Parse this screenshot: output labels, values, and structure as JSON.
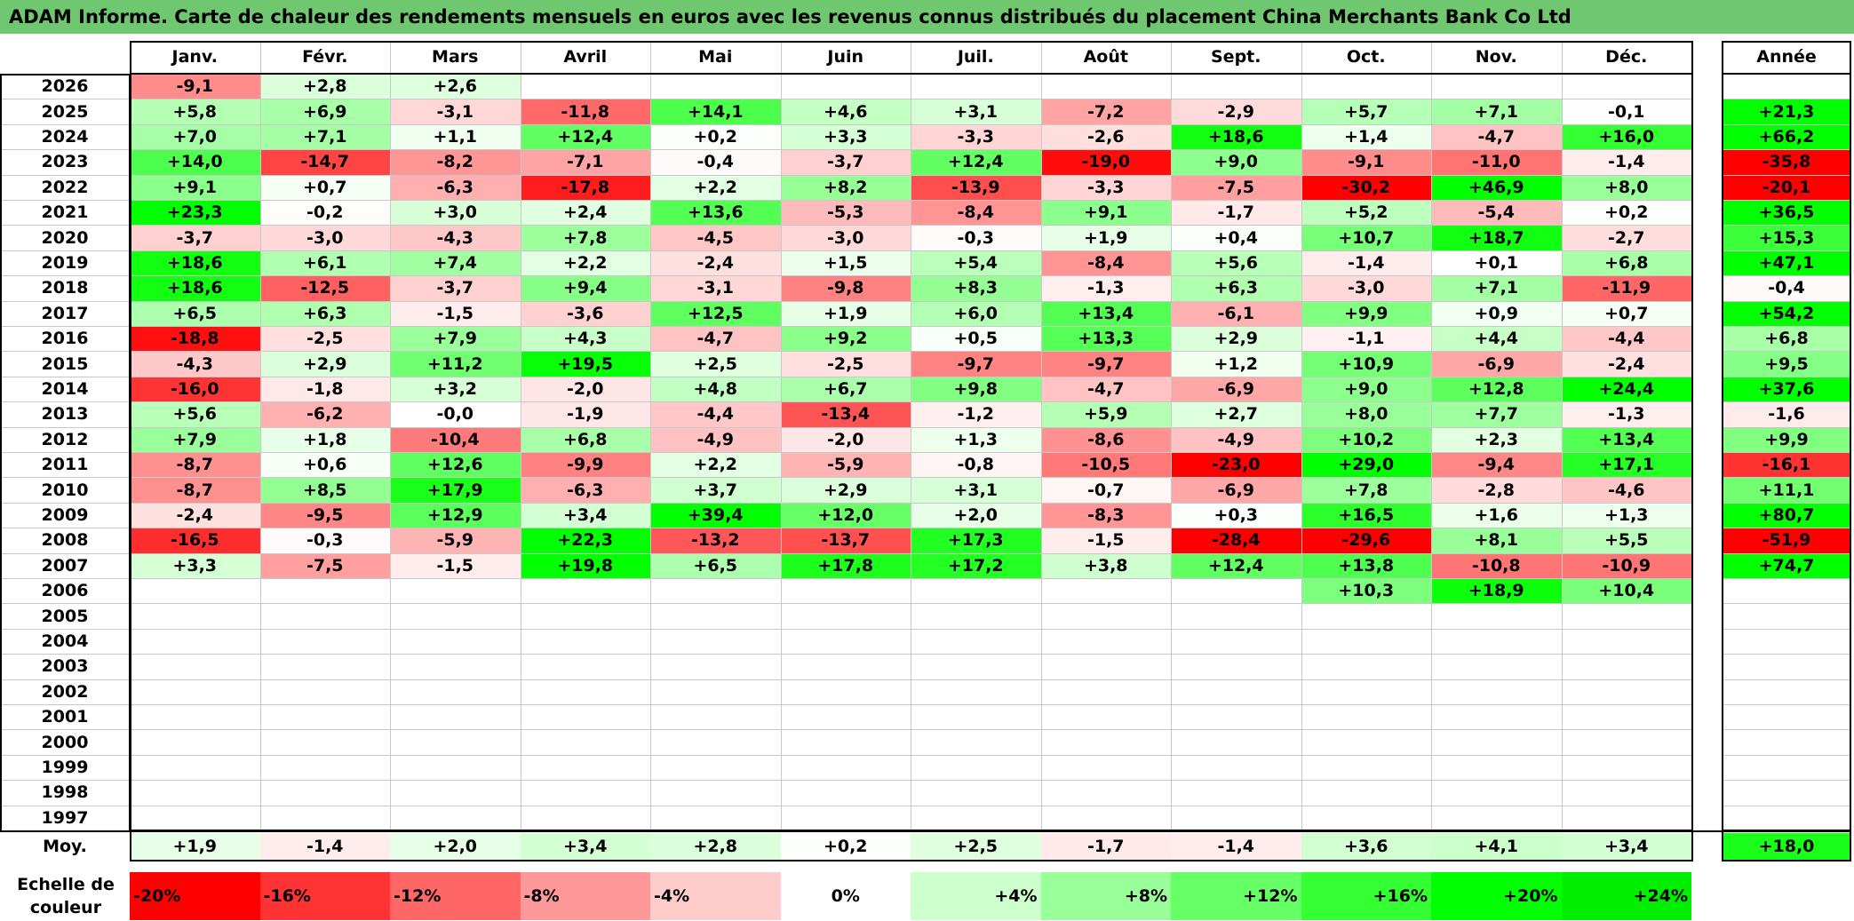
{
  "title": "ADAM Informe. Carte de chaleur des rendements mensuels en euros avec les revenus connus distribués du placement China Merchants Bank Co Ltd",
  "chart_data": {
    "type": "heatmap",
    "title": "ADAM Informe. Carte de chaleur des rendements mensuels en euros avec les revenus connus distribués du placement China Merchants Bank Co Ltd",
    "columns": [
      "Janv.",
      "Févr.",
      "Mars",
      "Avril",
      "Mai",
      "Juin",
      "Juil.",
      "Août",
      "Sept.",
      "Oct.",
      "Nov.",
      "Déc."
    ],
    "year_header": "Année",
    "rows": [
      {
        "year": "2026",
        "months": [
          "-9,1",
          "+2,8",
          "+2,6",
          "",
          "",
          "",
          "",
          "",
          "",
          "",
          "",
          ""
        ],
        "annual": ""
      },
      {
        "year": "2025",
        "months": [
          "+5,8",
          "+6,9",
          "-3,1",
          "-11,8",
          "+14,1",
          "+4,6",
          "+3,1",
          "-7,2",
          "-2,9",
          "+5,7",
          "+7,1",
          "-0,1"
        ],
        "annual": "+21,3"
      },
      {
        "year": "2024",
        "months": [
          "+7,0",
          "+7,1",
          "+1,1",
          "+12,4",
          "+0,2",
          "+3,3",
          "-3,3",
          "-2,6",
          "+18,6",
          "+1,4",
          "-4,7",
          "+16,0"
        ],
        "annual": "+66,2"
      },
      {
        "year": "2023",
        "months": [
          "+14,0",
          "-14,7",
          "-8,2",
          "-7,1",
          "-0,4",
          "-3,7",
          "+12,4",
          "-19,0",
          "+9,0",
          "-9,1",
          "-11,0",
          "-1,4"
        ],
        "annual": "-35,8"
      },
      {
        "year": "2022",
        "months": [
          "+9,1",
          "+0,7",
          "-6,3",
          "-17,8",
          "+2,2",
          "+8,2",
          "-13,9",
          "-3,3",
          "-7,5",
          "-30,2",
          "+46,9",
          "+8,0"
        ],
        "annual": "-20,1"
      },
      {
        "year": "2021",
        "months": [
          "+23,3",
          "-0,2",
          "+3,0",
          "+2,4",
          "+13,6",
          "-5,3",
          "-8,4",
          "+9,1",
          "-1,7",
          "+5,2",
          "-5,4",
          "+0,2"
        ],
        "annual": "+36,5"
      },
      {
        "year": "2020",
        "months": [
          "-3,7",
          "-3,0",
          "-4,3",
          "+7,8",
          "-4,5",
          "-3,0",
          "-0,3",
          "+1,9",
          "+0,4",
          "+10,7",
          "+18,7",
          "-2,7"
        ],
        "annual": "+15,3"
      },
      {
        "year": "2019",
        "months": [
          "+18,6",
          "+6,1",
          "+7,4",
          "+2,2",
          "-2,4",
          "+1,5",
          "+5,4",
          "-8,4",
          "+5,6",
          "-1,4",
          "+0,1",
          "+6,8"
        ],
        "annual": "+47,1"
      },
      {
        "year": "2018",
        "months": [
          "+18,6",
          "-12,5",
          "-3,7",
          "+9,4",
          "-3,1",
          "-9,8",
          "+8,3",
          "-1,3",
          "+6,3",
          "-3,0",
          "+7,1",
          "-11,9"
        ],
        "annual": "-0,4"
      },
      {
        "year": "2017",
        "months": [
          "+6,5",
          "+6,3",
          "-1,5",
          "-3,6",
          "+12,5",
          "+1,9",
          "+6,0",
          "+13,4",
          "-6,1",
          "+9,9",
          "+0,9",
          "+0,7"
        ],
        "annual": "+54,2"
      },
      {
        "year": "2016",
        "months": [
          "-18,8",
          "-2,5",
          "+7,9",
          "+4,3",
          "-4,7",
          "+9,2",
          "+0,5",
          "+13,3",
          "+2,9",
          "-1,1",
          "+4,4",
          "-4,4"
        ],
        "annual": "+6,8"
      },
      {
        "year": "2015",
        "months": [
          "-4,3",
          "+2,9",
          "+11,2",
          "+19,5",
          "+2,5",
          "-2,5",
          "-9,7",
          "-9,7",
          "+1,2",
          "+10,9",
          "-6,9",
          "-2,4"
        ],
        "annual": "+9,5"
      },
      {
        "year": "2014",
        "months": [
          "-16,0",
          "-1,8",
          "+3,2",
          "-2,0",
          "+4,8",
          "+6,7",
          "+9,8",
          "-4,7",
          "-6,9",
          "+9,0",
          "+12,8",
          "+24,4"
        ],
        "annual": "+37,6"
      },
      {
        "year": "2013",
        "months": [
          "+5,6",
          "-6,2",
          "-0,0",
          "-1,9",
          "-4,4",
          "-13,4",
          "-1,2",
          "+5,9",
          "+2,7",
          "+8,0",
          "+7,7",
          "-1,3"
        ],
        "annual": "-1,6"
      },
      {
        "year": "2012",
        "months": [
          "+7,9",
          "+1,8",
          "-10,4",
          "+6,8",
          "-4,9",
          "-2,0",
          "+1,3",
          "-8,6",
          "-4,9",
          "+10,2",
          "+2,3",
          "+13,4"
        ],
        "annual": "+9,9"
      },
      {
        "year": "2011",
        "months": [
          "-8,7",
          "+0,6",
          "+12,6",
          "-9,9",
          "+2,2",
          "-5,9",
          "-0,8",
          "-10,5",
          "-23,0",
          "+29,0",
          "-9,4",
          "+17,1"
        ],
        "annual": "-16,1"
      },
      {
        "year": "2010",
        "months": [
          "-8,7",
          "+8,5",
          "+17,9",
          "-6,3",
          "+3,7",
          "+2,9",
          "+3,1",
          "-0,7",
          "-6,9",
          "+7,8",
          "-2,8",
          "-4,6"
        ],
        "annual": "+11,1"
      },
      {
        "year": "2009",
        "months": [
          "-2,4",
          "-9,5",
          "+12,9",
          "+3,4",
          "+39,4",
          "+12,0",
          "+2,0",
          "-8,3",
          "+0,3",
          "+16,5",
          "+1,6",
          "+1,3"
        ],
        "annual": "+80,7"
      },
      {
        "year": "2008",
        "months": [
          "-16,5",
          "-0,3",
          "-5,9",
          "+22,3",
          "-13,2",
          "-13,7",
          "+17,3",
          "-1,5",
          "-28,4",
          "-29,6",
          "+8,1",
          "+5,5"
        ],
        "annual": "-51,9"
      },
      {
        "year": "2007",
        "months": [
          "+3,3",
          "-7,5",
          "-1,5",
          "+19,8",
          "+6,5",
          "+17,8",
          "+17,2",
          "+3,8",
          "+12,4",
          "+13,8",
          "-10,8",
          "-10,9"
        ],
        "annual": "+74,7"
      },
      {
        "year": "2006",
        "months": [
          "",
          "",
          "",
          "",
          "",
          "",
          "",
          "",
          "",
          "+10,3",
          "+18,9",
          "+10,4"
        ],
        "annual": ""
      },
      {
        "year": "2005",
        "months": [
          "",
          "",
          "",
          "",
          "",
          "",
          "",
          "",
          "",
          "",
          "",
          ""
        ],
        "annual": ""
      },
      {
        "year": "2004",
        "months": [
          "",
          "",
          "",
          "",
          "",
          "",
          "",
          "",
          "",
          "",
          "",
          ""
        ],
        "annual": ""
      },
      {
        "year": "2003",
        "months": [
          "",
          "",
          "",
          "",
          "",
          "",
          "",
          "",
          "",
          "",
          "",
          ""
        ],
        "annual": ""
      },
      {
        "year": "2002",
        "months": [
          "",
          "",
          "",
          "",
          "",
          "",
          "",
          "",
          "",
          "",
          "",
          ""
        ],
        "annual": ""
      },
      {
        "year": "2001",
        "months": [
          "",
          "",
          "",
          "",
          "",
          "",
          "",
          "",
          "",
          "",
          "",
          ""
        ],
        "annual": ""
      },
      {
        "year": "2000",
        "months": [
          "",
          "",
          "",
          "",
          "",
          "",
          "",
          "",
          "",
          "",
          "",
          ""
        ],
        "annual": ""
      },
      {
        "year": "1999",
        "months": [
          "",
          "",
          "",
          "",
          "",
          "",
          "",
          "",
          "",
          "",
          "",
          ""
        ],
        "annual": ""
      },
      {
        "year": "1998",
        "months": [
          "",
          "",
          "",
          "",
          "",
          "",
          "",
          "",
          "",
          "",
          "",
          ""
        ],
        "annual": ""
      },
      {
        "year": "1997",
        "months": [
          "",
          "",
          "",
          "",
          "",
          "",
          "",
          "",
          "",
          "",
          "",
          ""
        ],
        "annual": ""
      }
    ],
    "average": {
      "label": "Moy.",
      "months": [
        "+1,9",
        "-1,4",
        "+2,0",
        "+3,4",
        "+2,8",
        "+0,2",
        "+2,5",
        "-1,7",
        "-1,4",
        "+3,6",
        "+4,1",
        "+3,4"
      ],
      "annual": "+18,0"
    },
    "color_scale": {
      "label_line1": "Echelle de",
      "label_line2": "couleur",
      "stops": [
        {
          "label": "-20%",
          "value": -20,
          "color": "#ff0000"
        },
        {
          "label": "-16%",
          "value": -16,
          "color": "#ff3333"
        },
        {
          "label": "-12%",
          "value": -12,
          "color": "#ff6666"
        },
        {
          "label": "-8%",
          "value": -8,
          "color": "#ff9999"
        },
        {
          "label": "-4%",
          "value": -4,
          "color": "#ffcccc"
        },
        {
          "label": "0%",
          "value": 0,
          "color": "#ffffff"
        },
        {
          "label": "+4%",
          "value": 4,
          "color": "#ccffcc"
        },
        {
          "label": "+8%",
          "value": 8,
          "color": "#99ff99"
        },
        {
          "label": "+12%",
          "value": 12,
          "color": "#66ff66"
        },
        {
          "label": "+16%",
          "value": 16,
          "color": "#33ff33"
        },
        {
          "label": "+20%",
          "value": 20,
          "color": "#00ff00"
        },
        {
          "label": "+24%",
          "value": 24,
          "color": "#00ee00"
        }
      ]
    }
  }
}
